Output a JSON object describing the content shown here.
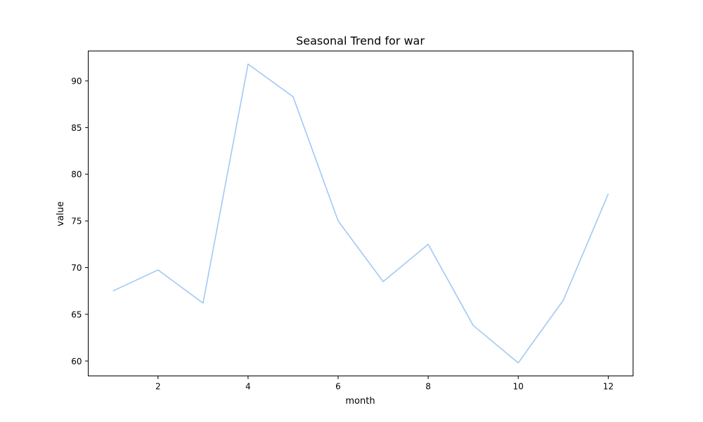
{
  "chart_data": {
    "type": "line",
    "title": "Seasonal Trend for war",
    "xlabel": "month",
    "ylabel": "value",
    "xlim": [
      0.45,
      12.55
    ],
    "ylim": [
      58.4,
      93.2
    ],
    "xticks": [
      2,
      4,
      6,
      8,
      10,
      12
    ],
    "yticks": [
      60,
      65,
      70,
      75,
      80,
      85,
      90
    ],
    "grid": false,
    "series": [
      {
        "color": "#a1c9f4",
        "x": [
          1,
          2,
          3,
          4,
          5,
          6,
          7,
          8,
          9,
          10,
          11,
          12
        ],
        "y": [
          67.5,
          69.75,
          66.2,
          91.8,
          88.3,
          75.0,
          68.5,
          72.5,
          63.8,
          59.8,
          66.5,
          77.9
        ]
      }
    ]
  }
}
